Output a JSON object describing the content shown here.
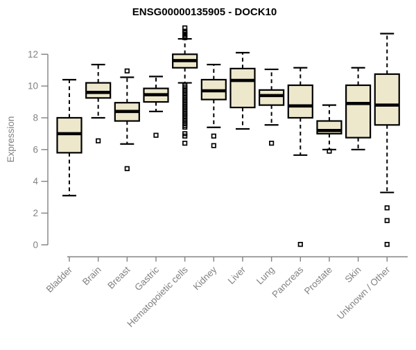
{
  "chart_data": {
    "type": "boxplot",
    "title": "ENSG00000135905 - DOCK10",
    "ylabel": "Expression",
    "xlabel": "",
    "yticks": [
      0,
      2,
      4,
      6,
      8,
      10,
      12
    ],
    "ylim": [
      0,
      13.8
    ],
    "grid": false,
    "legend": false,
    "box_fill": "#EDE8CC",
    "box_stroke": "#000000",
    "median_color": "#000000",
    "axis_color": "#818181",
    "outlier_shape": "open-square",
    "categories": [
      "Bladder",
      "Brain",
      "Breast",
      "Gastric",
      "Hematopoietic cells",
      "Kidney",
      "Liver",
      "Lung",
      "Pancreas",
      "Prostate",
      "Skin",
      "Unknown / Other"
    ],
    "series": [
      {
        "name": "Bladder",
        "whisker_low": 3.1,
        "q1": 5.8,
        "median": 7.0,
        "q3": 8.0,
        "whisker_high": 10.4,
        "outliers": []
      },
      {
        "name": "Brain",
        "whisker_low": 8.0,
        "q1": 9.25,
        "median": 9.6,
        "q3": 10.2,
        "whisker_high": 11.35,
        "outliers": [
          6.55
        ]
      },
      {
        "name": "Breast",
        "whisker_low": 6.35,
        "q1": 7.8,
        "median": 8.4,
        "q3": 8.95,
        "whisker_high": 10.55,
        "outliers": [
          10.95,
          4.8
        ]
      },
      {
        "name": "Gastric",
        "whisker_low": 8.4,
        "q1": 9.0,
        "median": 9.45,
        "q3": 9.85,
        "whisker_high": 10.6,
        "outliers": [
          6.9
        ]
      },
      {
        "name": "Hematopoietic cells",
        "whisker_low": 10.2,
        "q1": 11.15,
        "median": 11.6,
        "q3": 12.0,
        "whisker_high": 12.97,
        "outliers": [
          13.66,
          13.45,
          13.35,
          13.25,
          13.15,
          13.05,
          10.05,
          9.94,
          9.83,
          9.72,
          9.61,
          9.5,
          9.39,
          9.28,
          9.17,
          9.06,
          8.95,
          8.84,
          8.73,
          8.62,
          8.51,
          8.4,
          8.29,
          8.18,
          8.07,
          7.96,
          7.85,
          7.74,
          7.63,
          7.52,
          7.41,
          7.0,
          6.85,
          6.4
        ]
      },
      {
        "name": "Kidney",
        "whisker_low": 7.4,
        "q1": 9.15,
        "median": 9.7,
        "q3": 10.4,
        "whisker_high": 11.35,
        "outliers": [
          6.85,
          6.25
        ]
      },
      {
        "name": "Liver",
        "whisker_low": 7.3,
        "q1": 8.65,
        "median": 10.35,
        "q3": 11.1,
        "whisker_high": 12.1,
        "outliers": []
      },
      {
        "name": "Lung",
        "whisker_low": 7.55,
        "q1": 8.8,
        "median": 9.4,
        "q3": 9.75,
        "whisker_high": 11.05,
        "outliers": [
          6.4
        ]
      },
      {
        "name": "Pancreas",
        "whisker_low": 5.65,
        "q1": 8.0,
        "median": 8.75,
        "q3": 10.05,
        "whisker_high": 11.15,
        "outliers": [
          0.03
        ]
      },
      {
        "name": "Prostate",
        "whisker_low": 6.0,
        "q1": 7.0,
        "median": 7.2,
        "q3": 7.8,
        "whisker_high": 8.8,
        "outliers": [
          5.9
        ]
      },
      {
        "name": "Skin",
        "whisker_low": 6.0,
        "q1": 6.75,
        "median": 8.9,
        "q3": 10.05,
        "whisker_high": 11.15,
        "outliers": []
      },
      {
        "name": "Unknown / Other",
        "whisker_low": 3.3,
        "q1": 7.55,
        "median": 8.8,
        "q3": 10.75,
        "whisker_high": 13.3,
        "outliers": [
          2.33,
          1.53,
          0.03
        ]
      }
    ]
  }
}
